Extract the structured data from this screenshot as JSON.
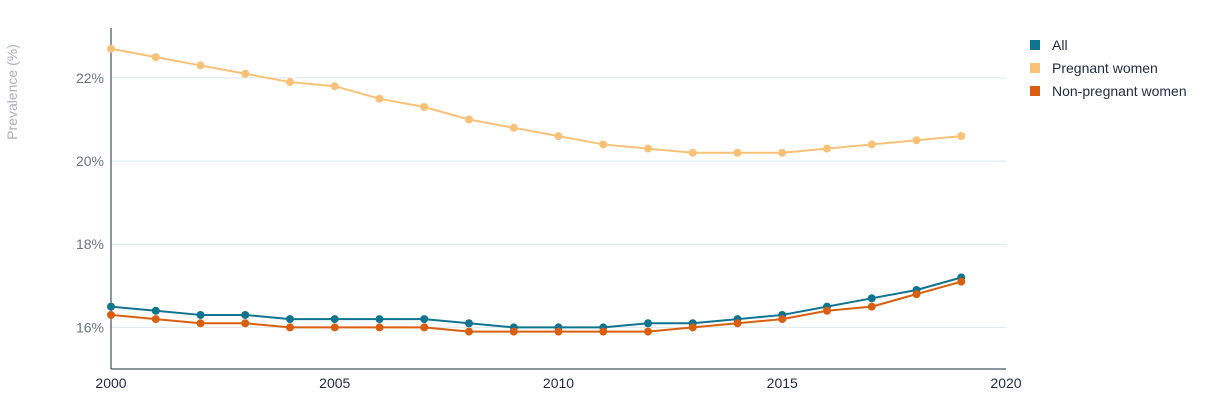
{
  "chart_data": {
    "type": "line",
    "ylabel": "Prevalence (%)",
    "xlabel": "",
    "xlim": [
      2000,
      2020
    ],
    "ylim": [
      15,
      23.2
    ],
    "x_ticks": [
      "2000",
      "2005",
      "2010",
      "2015",
      "2020"
    ],
    "y_ticks": [
      {
        "value": 16,
        "label": "16%"
      },
      {
        "value": 18,
        "label": "18%"
      },
      {
        "value": 20,
        "label": "20%"
      },
      {
        "value": 22,
        "label": "22%"
      }
    ],
    "grid": true,
    "legend_position": "top-right",
    "x": [
      2000,
      2001,
      2002,
      2003,
      2004,
      2005,
      2006,
      2007,
      2008,
      2009,
      2010,
      2011,
      2012,
      2013,
      2014,
      2015,
      2016,
      2017,
      2018,
      2019
    ],
    "series": [
      {
        "name": "All",
        "color": "#0e7490",
        "values": [
          16.5,
          16.4,
          16.3,
          16.3,
          16.2,
          16.2,
          16.2,
          16.2,
          16.1,
          16.0,
          16.0,
          16.0,
          16.1,
          16.1,
          16.2,
          16.3,
          16.5,
          16.7,
          16.9,
          17.2
        ]
      },
      {
        "name": "Pregnant women",
        "color": "#f8c177",
        "values": [
          22.7,
          22.5,
          22.3,
          22.1,
          21.9,
          21.8,
          21.5,
          21.3,
          21.0,
          20.8,
          20.6,
          20.4,
          20.3,
          20.2,
          20.2,
          20.2,
          20.3,
          20.4,
          20.5,
          20.6
        ]
      },
      {
        "name": "Non-pregnant women",
        "color": "#d95f0e",
        "values": [
          16.3,
          16.2,
          16.1,
          16.1,
          16.0,
          16.0,
          16.0,
          16.0,
          15.9,
          15.9,
          15.9,
          15.9,
          15.9,
          16.0,
          16.1,
          16.2,
          16.4,
          16.5,
          16.8,
          17.1
        ]
      }
    ]
  }
}
